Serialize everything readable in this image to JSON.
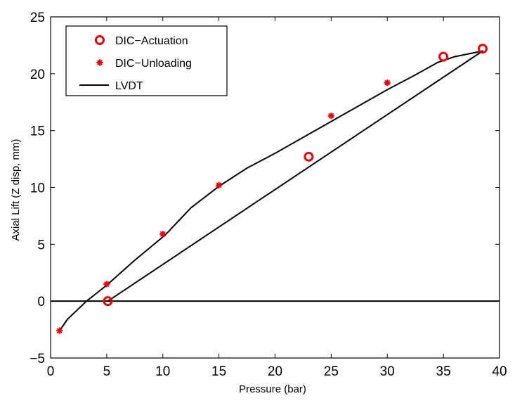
{
  "chart_data": {
    "type": "scatter",
    "xlabel": "Pressure (bar)",
    "ylabel": "Axial Lift (Z disp, mm)",
    "xlim": [
      0,
      40
    ],
    "ylim": [
      -5,
      25
    ],
    "xticks": [
      0,
      5,
      10,
      15,
      20,
      25,
      30,
      35,
      40
    ],
    "yticks": [
      -5,
      0,
      5,
      10,
      15,
      20,
      25
    ],
    "grid": false,
    "legend_position": "top-left",
    "series": [
      {
        "name": "DIC−Actuation",
        "marker": "circle",
        "color": "#e8000b",
        "points": [
          [
            5.1,
            0.0
          ],
          [
            23.0,
            12.7
          ],
          [
            35.0,
            21.5
          ],
          [
            38.5,
            22.2
          ]
        ]
      },
      {
        "name": "DIC−Unloading",
        "marker": "asterisk",
        "color": "#e8000b",
        "points": [
          [
            0.8,
            -2.6
          ],
          [
            5.0,
            1.5
          ],
          [
            10.0,
            5.9
          ],
          [
            15.0,
            10.2
          ],
          [
            25.0,
            16.3
          ],
          [
            30.0,
            19.2
          ]
        ]
      },
      {
        "name": "LVDT",
        "marker": "line",
        "color": "#000000",
        "points": [
          [
            0.8,
            -2.6
          ],
          [
            1.5,
            -1.6
          ],
          [
            3.2,
            0.0
          ],
          [
            5.0,
            1.4
          ],
          [
            7.5,
            3.6
          ],
          [
            10.2,
            5.8
          ],
          [
            12.5,
            8.2
          ],
          [
            15.0,
            10.1
          ],
          [
            17.5,
            11.7
          ],
          [
            20.0,
            13.0
          ],
          [
            22.5,
            14.4
          ],
          [
            25.0,
            15.8
          ],
          [
            27.5,
            17.2
          ],
          [
            30.0,
            18.6
          ],
          [
            32.5,
            19.9
          ],
          [
            34.5,
            21.0
          ],
          [
            36.0,
            21.5
          ],
          [
            38.5,
            22.0
          ],
          [
            5.1,
            0.0
          ]
        ]
      }
    ],
    "reference_line": {
      "y": 0,
      "color": "#000000"
    }
  }
}
